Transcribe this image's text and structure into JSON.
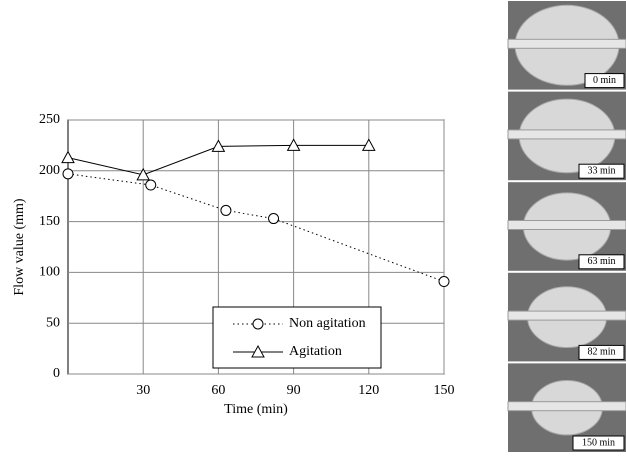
{
  "chart_data": {
    "type": "line",
    "x_label": "Time (min)",
    "y_label": "Flow value (mm)",
    "xlim": [
      0,
      150
    ],
    "xticks": [
      30,
      60,
      90,
      120,
      150
    ],
    "ylim": [
      0,
      250
    ],
    "yticks": [
      0,
      50,
      100,
      150,
      200,
      250
    ],
    "grid": true,
    "legend": "lower right",
    "series": [
      {
        "name": "Non agitation",
        "color": "#000000",
        "marker": "circle",
        "dash": "dotted",
        "x": [
          0,
          33,
          63,
          82,
          150
        ],
        "values": [
          197,
          186,
          161,
          153,
          91
        ]
      },
      {
        "name": "Agitation",
        "color": "#000000",
        "marker": "triangle",
        "dash": "solid",
        "x": [
          0,
          30,
          60,
          90,
          120
        ],
        "values": [
          213,
          196,
          224,
          225,
          225
        ]
      }
    ]
  },
  "photos": [
    {
      "label": "0 min"
    },
    {
      "label": "33 min"
    },
    {
      "label": "63 min"
    },
    {
      "label": "82 min"
    },
    {
      "label": "150 min"
    }
  ]
}
